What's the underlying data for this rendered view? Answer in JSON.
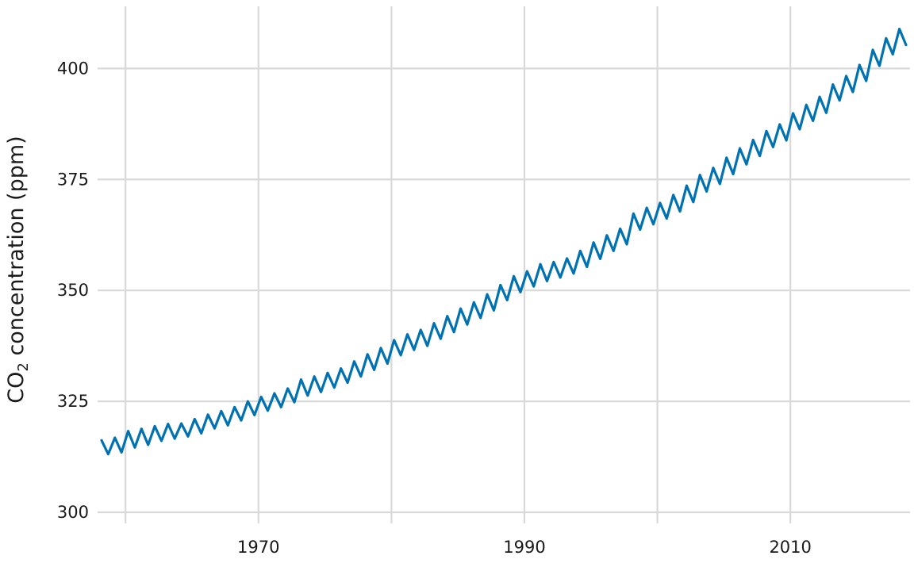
{
  "chart_data": {
    "type": "line",
    "ylabel": {
      "main": "CO",
      "subscript": "2",
      "rest": " concentration (ppm)"
    },
    "xlabel": "",
    "xlim": [
      1957.9,
      2019.0
    ],
    "ylim": [
      297.5,
      414.0
    ],
    "x_ticks": [
      1960,
      1970,
      1980,
      1990,
      2000,
      2010
    ],
    "x_tick_labels": [
      "",
      "1970",
      "",
      "1990",
      "",
      "2010"
    ],
    "y_ticks": [
      300,
      325,
      350,
      375,
      400
    ],
    "y_tick_labels": [
      "300",
      "325",
      "350",
      "375",
      "400"
    ],
    "grid": true,
    "line_color": "#0072b2",
    "grid_color": "#d9d9d9",
    "series": [
      {
        "x": [
          1958.2,
          1958.7,
          1959.2,
          1959.7,
          1960.2,
          1960.7,
          1961.2,
          1961.7,
          1962.2,
          1962.7,
          1963.2,
          1963.7,
          1964.2,
          1964.7,
          1965.2,
          1965.7,
          1966.2,
          1966.7,
          1967.2,
          1967.7,
          1968.2,
          1968.7,
          1969.2,
          1969.7,
          1970.2,
          1970.7,
          1971.2,
          1971.7,
          1972.2,
          1972.7,
          1973.2,
          1973.7,
          1974.2,
          1974.7,
          1975.2,
          1975.7,
          1976.2,
          1976.7,
          1977.2,
          1977.7,
          1978.2,
          1978.7,
          1979.2,
          1979.7,
          1980.2,
          1980.7,
          1981.2,
          1981.7,
          1982.2,
          1982.7,
          1983.2,
          1983.7,
          1984.2,
          1984.7,
          1985.2,
          1985.7,
          1986.2,
          1986.7,
          1987.2,
          1987.7,
          1988.2,
          1988.7,
          1989.2,
          1989.7,
          1990.2,
          1990.7,
          1991.2,
          1991.7,
          1992.2,
          1992.7,
          1993.2,
          1993.7,
          1994.2,
          1994.7,
          1995.2,
          1995.7,
          1996.2,
          1996.7,
          1997.2,
          1997.7,
          1998.2,
          1998.7,
          1999.2,
          1999.7,
          2000.2,
          2000.7,
          2001.2,
          2001.7,
          2002.2,
          2002.7,
          2003.2,
          2003.7,
          2004.2,
          2004.7,
          2005.2,
          2005.7,
          2006.2,
          2006.7,
          2007.2,
          2007.7,
          2008.2,
          2008.7,
          2009.2,
          2009.7,
          2010.2,
          2010.7,
          2011.2,
          2011.7,
          2012.2,
          2012.7,
          2013.2,
          2013.7,
          2014.2,
          2014.7,
          2015.2,
          2015.7,
          2016.2,
          2016.7,
          2017.2,
          2017.7,
          2018.2,
          2018.7
        ],
        "y": [
          316.2,
          313.1,
          316.8,
          313.5,
          318.3,
          314.6,
          318.8,
          315.2,
          319.4,
          316.1,
          319.9,
          316.6,
          320.0,
          317.1,
          321.0,
          317.8,
          322.0,
          318.9,
          322.8,
          319.6,
          323.7,
          320.7,
          325.0,
          321.9,
          326.0,
          322.9,
          326.8,
          323.7,
          327.9,
          324.8,
          329.9,
          326.3,
          330.6,
          327.1,
          331.4,
          328.1,
          332.4,
          329.2,
          334.0,
          330.6,
          335.6,
          332.1,
          337.0,
          333.5,
          338.8,
          335.4,
          340.1,
          336.6,
          341.1,
          337.5,
          342.6,
          339.1,
          344.2,
          340.6,
          345.9,
          342.3,
          347.3,
          343.8,
          349.1,
          345.5,
          351.2,
          347.8,
          353.2,
          349.6,
          354.3,
          350.9,
          355.9,
          352.1,
          356.4,
          352.9,
          357.2,
          353.8,
          358.9,
          355.3,
          360.8,
          357.1,
          362.4,
          358.9,
          363.9,
          360.4,
          367.3,
          363.7,
          368.6,
          364.9,
          369.7,
          366.2,
          371.5,
          367.8,
          373.6,
          369.9,
          376.0,
          372.3,
          377.6,
          374.0,
          379.9,
          376.2,
          382.0,
          378.4,
          383.9,
          380.3,
          385.9,
          382.3,
          387.4,
          383.8,
          389.9,
          386.3,
          391.8,
          388.2,
          393.6,
          390.0,
          396.4,
          392.8,
          398.3,
          394.7,
          400.8,
          397.2,
          404.2,
          400.6,
          406.8,
          403.2,
          408.9,
          405.3
        ]
      }
    ]
  }
}
